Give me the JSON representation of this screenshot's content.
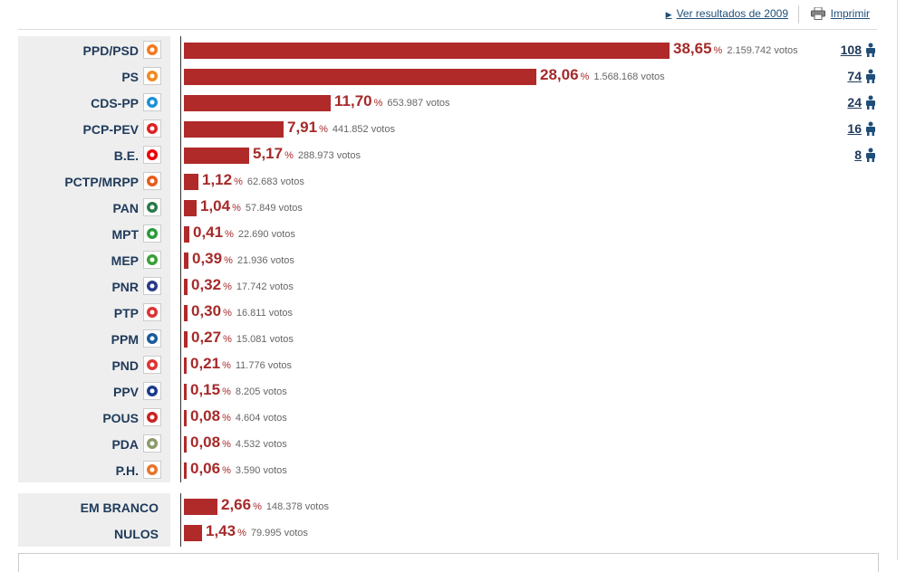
{
  "header": {
    "prev_results_label": "Ver resultados de 2009",
    "print_label": "Imprimir"
  },
  "units": {
    "pct": "%",
    "votes_suffix": "votos"
  },
  "parties": [
    {
      "name": "PPD/PSD",
      "pct": "38,65",
      "votes": "2.159.742 votos",
      "seats": "108",
      "value": 38.65,
      "logo": "psd-logo-icon",
      "color": "#f47920"
    },
    {
      "name": "PS",
      "pct": "28,06",
      "votes": "1.568.168 votos",
      "seats": "74",
      "value": 28.06,
      "logo": "ps-logo-icon",
      "color": "#f28a1e"
    },
    {
      "name": "CDS-PP",
      "pct": "11,70",
      "votes": "653.987 votos",
      "seats": "24",
      "value": 11.7,
      "logo": "cds-logo-icon",
      "color": "#1e90d6"
    },
    {
      "name": "PCP-PEV",
      "pct": "7,91",
      "votes": "441.852 votos",
      "seats": "16",
      "value": 7.91,
      "logo": "pcp-pev-logo-icon",
      "color": "#d22"
    },
    {
      "name": "B.E.",
      "pct": "5,17",
      "votes": "288.973 votos",
      "seats": "8",
      "value": 5.17,
      "logo": "be-logo-icon",
      "color": "#e00"
    },
    {
      "name": "PCTP/MRPP",
      "pct": "1,12",
      "votes": "62.683 votos",
      "seats": "",
      "value": 1.12,
      "logo": "pctp-logo-icon",
      "color": "#e85a1a"
    },
    {
      "name": "PAN",
      "pct": "1,04",
      "votes": "57.849 votos",
      "seats": "",
      "value": 1.04,
      "logo": "pan-logo-icon",
      "color": "#2a7a4a"
    },
    {
      "name": "MPT",
      "pct": "0,41",
      "votes": "22.690 votos",
      "seats": "",
      "value": 0.41,
      "logo": "mpt-logo-icon",
      "color": "#2a9a3a"
    },
    {
      "name": "MEP",
      "pct": "0,39",
      "votes": "21.936 votos",
      "seats": "",
      "value": 0.39,
      "logo": "mep-logo-icon",
      "color": "#3aa03a"
    },
    {
      "name": "PNR",
      "pct": "0,32",
      "votes": "17.742 votos",
      "seats": "",
      "value": 0.32,
      "logo": "pnr-logo-icon",
      "color": "#2a3a8a"
    },
    {
      "name": "PTP",
      "pct": "0,30",
      "votes": "16.811 votos",
      "seats": "",
      "value": 0.3,
      "logo": "ptp-logo-icon",
      "color": "#d33"
    },
    {
      "name": "PPM",
      "pct": "0,27",
      "votes": "15.081 votos",
      "seats": "",
      "value": 0.27,
      "logo": "ppm-logo-icon",
      "color": "#1a5a9a"
    },
    {
      "name": "PND",
      "pct": "0,21",
      "votes": "11.776 votos",
      "seats": "",
      "value": 0.21,
      "logo": "pnd-logo-icon",
      "color": "#d33"
    },
    {
      "name": "PPV",
      "pct": "0,15",
      "votes": "8.205 votos",
      "seats": "",
      "value": 0.15,
      "logo": "ppv-logo-icon",
      "color": "#1a3a8a"
    },
    {
      "name": "POUS",
      "pct": "0,08",
      "votes": "4.604 votos",
      "seats": "",
      "value": 0.08,
      "logo": "pous-logo-icon",
      "color": "#c22"
    },
    {
      "name": "PDA",
      "pct": "0,08",
      "votes": "4.532 votos",
      "seats": "",
      "value": 0.08,
      "logo": "pda-logo-icon",
      "color": "#8a9a6a"
    },
    {
      "name": "P.H.",
      "pct": "0,06",
      "votes": "3.590 votos",
      "seats": "",
      "value": 0.06,
      "logo": "ph-logo-icon",
      "color": "#e8742a"
    }
  ],
  "others": [
    {
      "name": "EM BRANCO",
      "pct": "2,66",
      "votes": "148.378 votos",
      "value": 2.66
    },
    {
      "name": "NULOS",
      "pct": "1,43",
      "votes": "79.995 votos",
      "value": 1.43
    }
  ],
  "colors": {
    "bar": "#b02a2a",
    "pct_text": "#a62a2a",
    "label": "#1f3a5a",
    "link": "#1f4e79"
  },
  "chart_data": {
    "type": "bar",
    "categories": [
      "PPD/PSD",
      "PS",
      "CDS-PP",
      "PCP-PEV",
      "B.E.",
      "PCTP/MRPP",
      "PAN",
      "MPT",
      "MEP",
      "PNR",
      "PTP",
      "PPM",
      "PND",
      "PPV",
      "POUS",
      "PDA",
      "P.H.",
      "EM BRANCO",
      "NULOS"
    ],
    "values": [
      38.65,
      28.06,
      11.7,
      7.91,
      5.17,
      1.12,
      1.04,
      0.41,
      0.39,
      0.32,
      0.3,
      0.27,
      0.21,
      0.15,
      0.08,
      0.08,
      0.06,
      2.66,
      1.43
    ],
    "title": "",
    "xlabel": "",
    "ylabel": ""
  }
}
